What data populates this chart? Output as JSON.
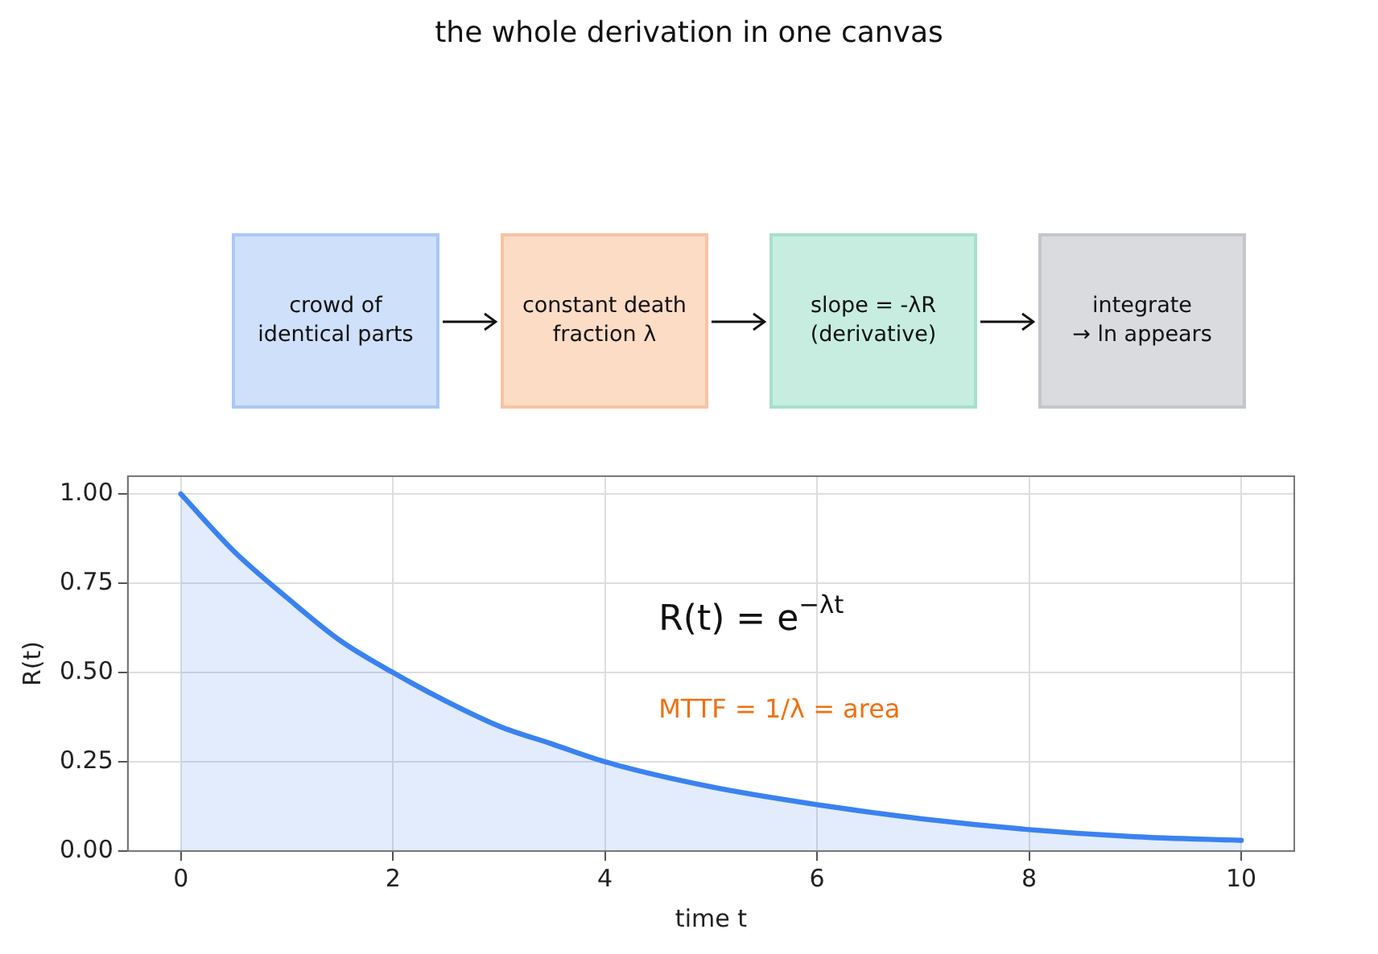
{
  "chart_data": {
    "type": "area",
    "title": "the whole derivation in one canvas",
    "xlabel": "time t",
    "ylabel": "R(t)",
    "x": [
      0,
      0.5,
      1,
      1.5,
      2,
      2.5,
      3,
      3.5,
      4,
      5,
      6,
      7,
      8,
      9,
      10
    ],
    "series": [
      {
        "color": "#3b82f0",
        "values": [
          1,
          0.84,
          0.71,
          0.59,
          0.5,
          0.42,
          0.35,
          0.3,
          0.25,
          0.18,
          0.13,
          0.09,
          0.06,
          0.04,
          0.03
        ]
      }
    ],
    "xlim": [
      -0.5,
      10.5
    ],
    "xticks": [
      0,
      2,
      4,
      6,
      8,
      10
    ],
    "ylim": [
      0,
      1.05
    ],
    "yticks": [
      {
        "value": 0,
        "label": "0.00"
      },
      {
        "value": 0.25,
        "label": "0.25"
      },
      {
        "value": 0.5,
        "label": "0.50"
      },
      {
        "value": 0.75,
        "label": "0.75"
      },
      {
        "value": 1,
        "label": "1.00"
      }
    ],
    "grid": true,
    "legend": false,
    "annotations": [
      "crowd of\nidentical parts",
      "constant death\nfraction  λ",
      "slope = -λR\n(derivative)",
      "integrate\n→ ln appears",
      "R(t) = e$^{−λt}$",
      "MTTF = 1/λ = area"
    ]
  }
}
